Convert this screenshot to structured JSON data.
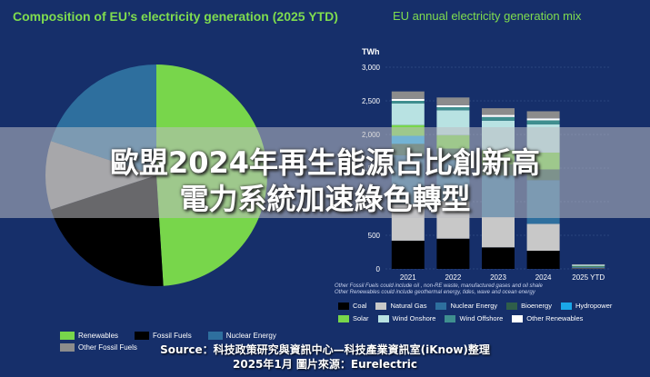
{
  "left_chart": {
    "title": "Composition of EU’s electricity generation (2025 YTD)",
    "legend": [
      {
        "label": "Renewables",
        "color": "#78d64b"
      },
      {
        "label": "Fossil Fuels",
        "color": "#000000"
      },
      {
        "label": "Nuclear Energy",
        "color": "#2e6f9e"
      },
      {
        "label": "Other Fossil Fuels",
        "color": "#8c8c8c"
      }
    ]
  },
  "right_chart": {
    "title": "EU annual electricity generation mix",
    "unit": "TWh",
    "notes": [
      "Other Fossil Fuels could include oil , non-RE waste, manufactured gases and oil shale",
      "Other Renewables could include geothermal energy, tides, wave and ocean energy"
    ]
  },
  "chart_data": [
    {
      "type": "pie",
      "title": "Composition of EU’s electricity generation (2025 YTD)",
      "slices": [
        {
          "label": "Renewables",
          "value": 49,
          "color": "#78d64b"
        },
        {
          "label": "Fossil Fuels",
          "value": 21,
          "color": "#000000"
        },
        {
          "label": "Other Fossil Fuels",
          "value": 10,
          "color": "#8c8c8c"
        },
        {
          "label": "Nuclear Energy",
          "value": 20,
          "color": "#2e6f9e"
        }
      ]
    },
    {
      "type": "bar",
      "stacked": true,
      "title": "EU annual electricity generation mix",
      "ylabel": "TWh",
      "ylim": [
        0,
        3000
      ],
      "yticks": [
        0,
        500,
        1000,
        1500,
        2000,
        2500,
        3000
      ],
      "ytick_labels": [
        "0",
        "500",
        "1,000",
        "1,500",
        "2,000",
        "2,500",
        "3,000"
      ],
      "categories": [
        "2021",
        "2022",
        "2023",
        "2024",
        "2025 YTD"
      ],
      "series": [
        {
          "name": "Coal",
          "color": "#000000",
          "values": [
            420,
            450,
            320,
            270,
            8
          ]
        },
        {
          "name": "Natural Gas",
          "color": "#c8c8c8",
          "values": [
            540,
            560,
            450,
            400,
            10
          ]
        },
        {
          "name": "Nuclear Energy",
          "color": "#2e6f9e",
          "values": [
            730,
            610,
            620,
            650,
            15
          ]
        },
        {
          "name": "Bioenergy",
          "color": "#2f5e4a",
          "values": [
            170,
            170,
            165,
            160,
            4
          ]
        },
        {
          "name": "Hydropower",
          "color": "#1aa7e8",
          "values": [
            120,
            0,
            0,
            0,
            0
          ]
        },
        {
          "name": "Solar",
          "color": "#78d64b",
          "values": [
            160,
            200,
            210,
            250,
            6
          ]
        },
        {
          "name": "Wind Onshore",
          "color": "#b8e2e2",
          "values": [
            320,
            370,
            440,
            420,
            15
          ]
        },
        {
          "name": "Wind Offshore",
          "color": "#3f8f8f",
          "values": [
            40,
            45,
            55,
            60,
            2
          ]
        },
        {
          "name": "Other Renewables",
          "color": "#ffffff",
          "values": [
            30,
            30,
            30,
            30,
            3
          ]
        },
        {
          "name": "Other Fossil Fuels",
          "color": "#8c8c8c",
          "values": [
            110,
            115,
            100,
            105,
            5
          ]
        }
      ]
    }
  ],
  "banner": {
    "line1": "歐盟2024年再生能源占比創新高",
    "line2": "電力系統加速綠色轉型"
  },
  "source": {
    "line1": "Source：科技政策研究與資訊中心—科技產業資訊室(iKnow)整理",
    "line2": "2025年1月 圖片來源：Eurelectric"
  }
}
